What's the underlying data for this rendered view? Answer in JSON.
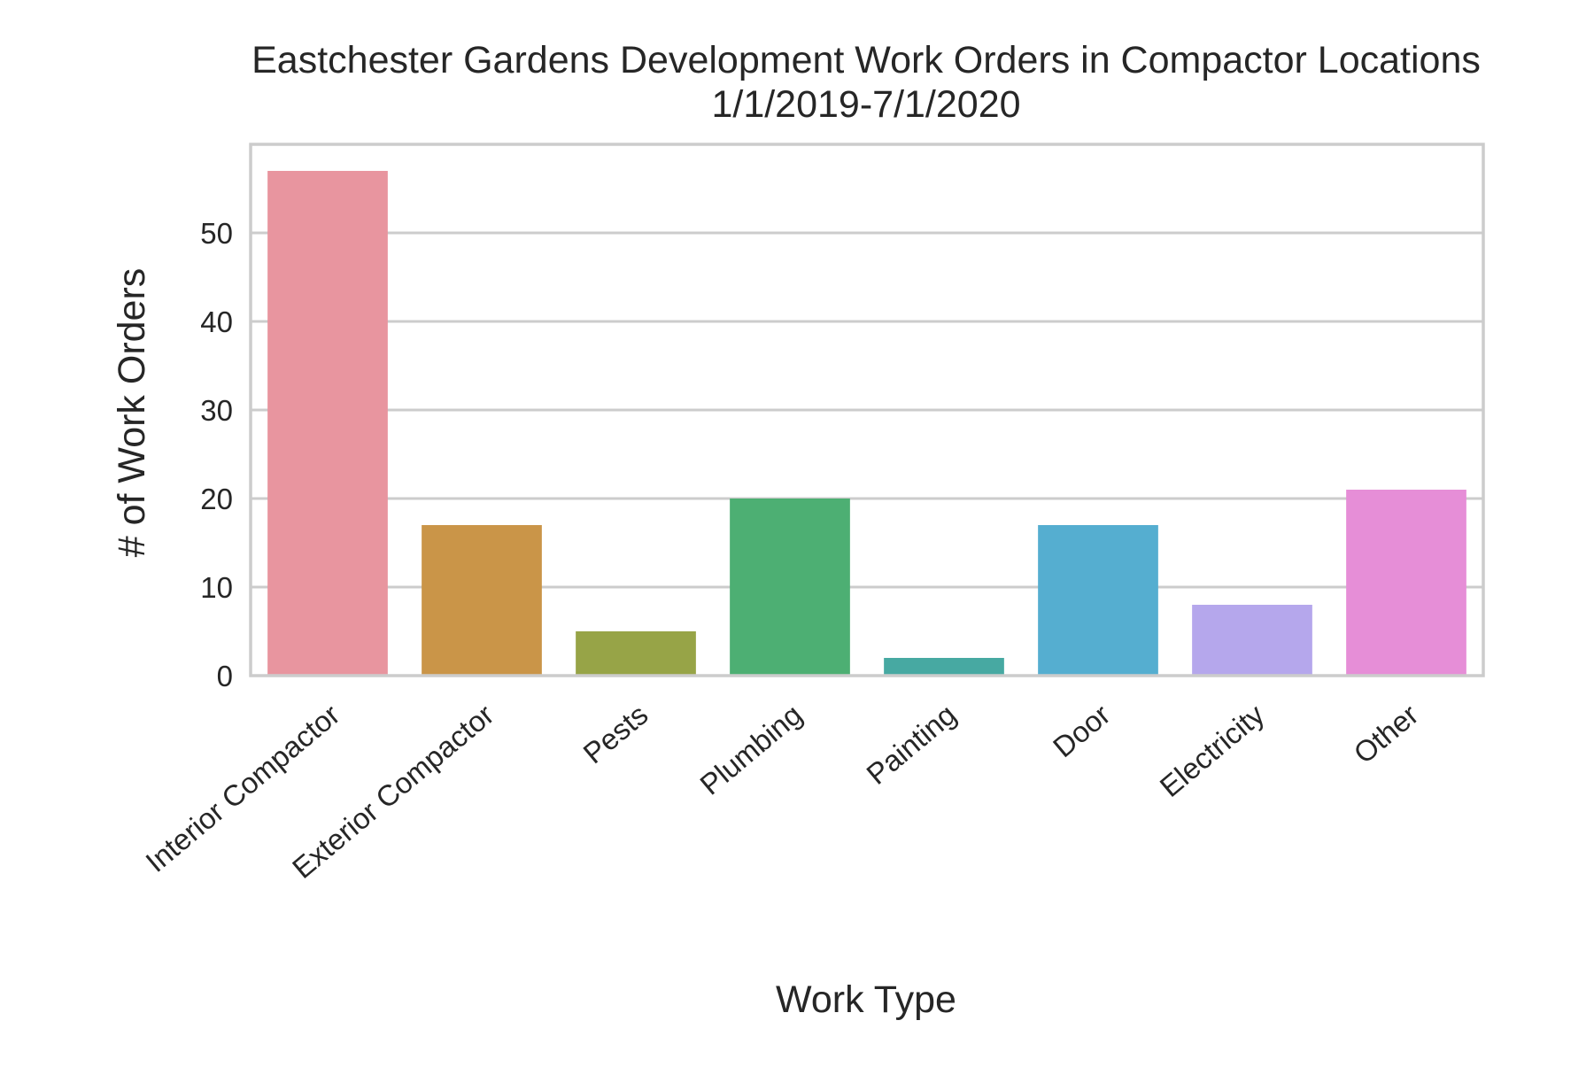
{
  "chart_data": {
    "type": "bar",
    "title": "Eastchester Gardens Development Work Orders in Compactor Locations",
    "subtitle": "1/1/2019-7/1/2020",
    "xlabel": "Work Type",
    "ylabel": "# of Work Orders",
    "categories": [
      "Interior Compactor",
      "Exterior Compactor",
      "Pests",
      "Plumbing",
      "Painting",
      "Door",
      "Electricity",
      "Other"
    ],
    "values": [
      57,
      17,
      5,
      20,
      2,
      17,
      8,
      21
    ],
    "colors": [
      "#e8959f",
      "#ca9548",
      "#97a447",
      "#4daf73",
      "#47a9a2",
      "#55aed0",
      "#b5a7ec",
      "#e68ed7"
    ],
    "ylim": [
      0,
      60
    ],
    "yticks": [
      0,
      10,
      20,
      30,
      40,
      50
    ],
    "grid": true,
    "grid_axis": "y"
  }
}
